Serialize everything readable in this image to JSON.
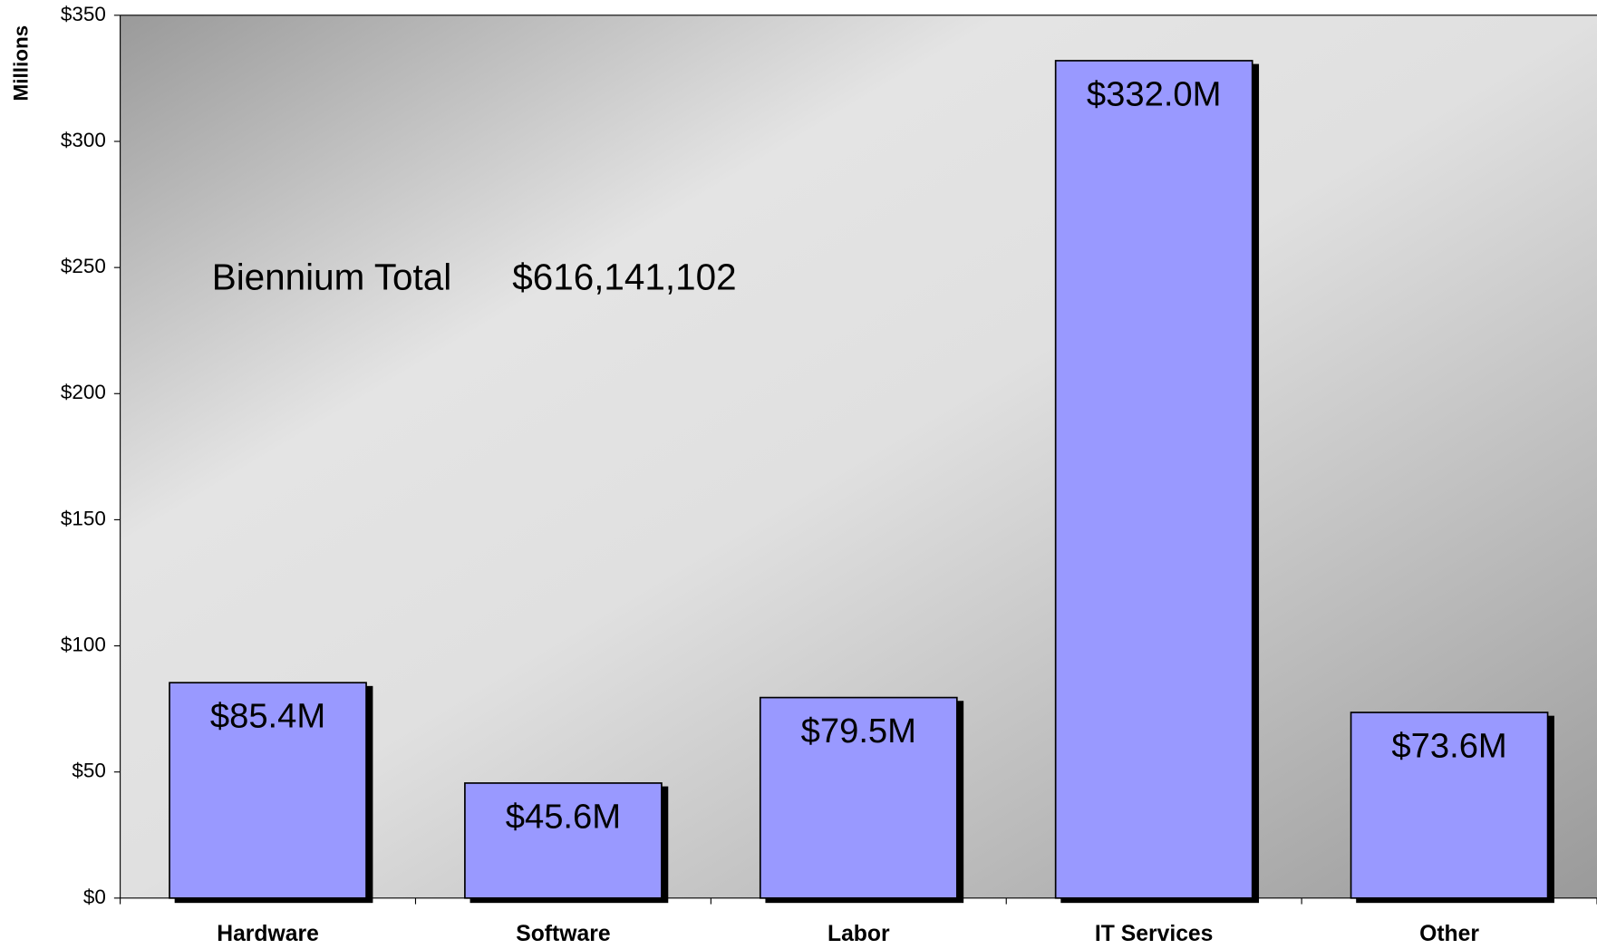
{
  "chart_data": {
    "type": "bar",
    "y_axis_label": "Millions",
    "annotation": {
      "label": "Biennium Total",
      "value": "$616,141,102"
    },
    "categories": [
      "Hardware",
      "Software",
      "Labor",
      "IT Services",
      "Other"
    ],
    "values": [
      85.4,
      45.6,
      79.5,
      332.0,
      73.6
    ],
    "value_labels": [
      "$85.4M",
      "$45.6M",
      "$79.5M",
      "$332.0M",
      "$73.6M"
    ],
    "color": "#9999ff",
    "ylim": [
      0,
      350
    ],
    "yticks": [
      {
        "value": 0,
        "label": "$0"
      },
      {
        "value": 50,
        "label": "$50"
      },
      {
        "value": 100,
        "label": "$100"
      },
      {
        "value": 150,
        "label": "$150"
      },
      {
        "value": 200,
        "label": "$200"
      },
      {
        "value": 250,
        "label": "$250"
      },
      {
        "value": 300,
        "label": "$300"
      },
      {
        "value": 350,
        "label": "$350"
      }
    ]
  }
}
